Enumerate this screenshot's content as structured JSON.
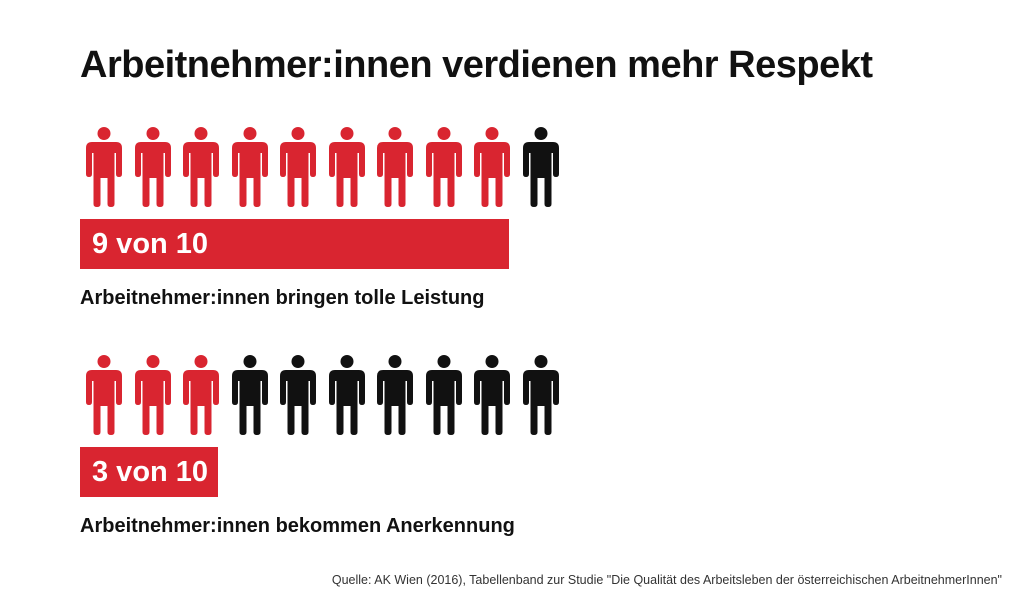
{
  "title": "Arbeitnehmer:innen verdienen mehr Respekt",
  "colors": {
    "highlight": "#d92530",
    "rest": "#111111",
    "bar": "#d92530"
  },
  "icon": "person-icon",
  "chart_data": [
    {
      "type": "bar",
      "total": 10,
      "value": 9,
      "label": "9 von 10",
      "caption": "Arbeitnehmer:innen bringen tolle Leistung"
    },
    {
      "type": "bar",
      "total": 10,
      "value": 3,
      "label": "3 von 10",
      "caption": "Arbeitnehmer:innen bekommen Anerkennung"
    }
  ],
  "source": "Quelle: AK Wien (2016), Tabellenband zur Studie \"Die Qualität des Arbeitsleben der österreichischen ArbeitnehmerInnen\""
}
